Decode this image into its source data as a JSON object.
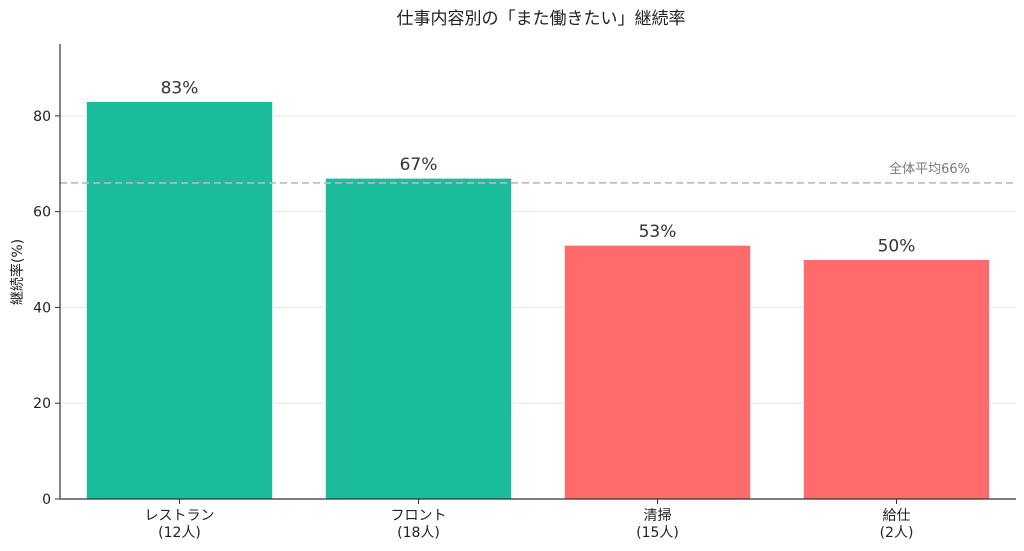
{
  "chart_data": {
    "type": "bar",
    "title": "仕事内容別の「また働きたい」継続率",
    "ylabel": "継続率(%)",
    "xlabel": "",
    "ylim": [
      0,
      95
    ],
    "yticks": [
      0,
      20,
      40,
      60,
      80
    ],
    "grid": true,
    "categories": [
      {
        "name": "レストラン",
        "count": "(12人)"
      },
      {
        "name": "フロント",
        "count": "(18人)"
      },
      {
        "name": "清掃",
        "count": "(15人)"
      },
      {
        "name": "給仕",
        "count": "(2人)"
      }
    ],
    "values": [
      83,
      67,
      53,
      50
    ],
    "value_labels": [
      "83%",
      "67%",
      "53%",
      "50%"
    ],
    "bar_colors": [
      "#1abc9c",
      "#1abc9c",
      "#ff6b6b",
      "#ff6b6b"
    ],
    "reference_line": {
      "value": 66,
      "label": "全体平均66%",
      "color": "#bbbbbb"
    }
  }
}
